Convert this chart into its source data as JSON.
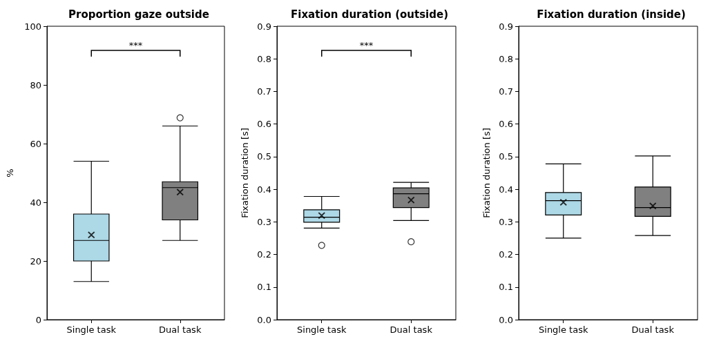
{
  "chart_data": [
    {
      "type": "box",
      "title": "Proportion gaze outside",
      "ylabel": "%",
      "categories": [
        "Single task",
        "Dual task"
      ],
      "colors": [
        "#add8e6",
        "#808080"
      ],
      "boxes": [
        {
          "low": 13,
          "q1": 20,
          "median": 27,
          "q3": 36,
          "high": 54,
          "mean": 28.9
        },
        {
          "low": 27,
          "q1": 34,
          "median": 45,
          "q3": 47,
          "high": 66,
          "mean": 43.5,
          "outliers": [
            68.8
          ]
        }
      ],
      "ylim": [
        0,
        100
      ],
      "yticks": [
        0,
        20,
        40,
        60,
        80,
        100
      ],
      "grid": false,
      "annotations": [
        "***"
      ]
    },
    {
      "type": "box",
      "title": "Fixation duration (outside)",
      "ylabel": "Fixation duration [s]",
      "categories": [
        "Single task",
        "Dual task"
      ],
      "colors": [
        "#add8e6",
        "#808080"
      ],
      "boxes": [
        {
          "low": 0.281,
          "q1": 0.299,
          "median": 0.314,
          "q3": 0.337,
          "high": 0.378,
          "mean": 0.319,
          "outliers": [
            0.228
          ]
        },
        {
          "low": 0.304,
          "q1": 0.344,
          "median": 0.386,
          "q3": 0.404,
          "high": 0.421,
          "mean": 0.367,
          "outliers": [
            0.239
          ]
        }
      ],
      "ylim": [
        0,
        0.9
      ],
      "yticks": [
        {
          "value": 0,
          "label": "0.0"
        },
        0.1,
        0.2,
        0.3,
        0.4,
        0.5,
        0.6,
        0.7,
        0.8,
        0.9
      ],
      "grid": false,
      "annotations": [
        "***"
      ]
    },
    {
      "type": "box",
      "title": "Fixation duration (inside)",
      "ylabel": "Fixation duration [s]",
      "categories": [
        "Single task",
        "Dual task"
      ],
      "colors": [
        "#add8e6",
        "#808080"
      ],
      "boxes": [
        {
          "low": 0.25,
          "q1": 0.321,
          "median": 0.365,
          "q3": 0.39,
          "high": 0.478,
          "mean": 0.36
        },
        {
          "low": 0.258,
          "q1": 0.317,
          "median": 0.344,
          "q3": 0.407,
          "high": 0.502,
          "mean": 0.349
        }
      ],
      "ylim": [
        0,
        0.9
      ],
      "yticks": [
        {
          "value": 0,
          "label": "0.0"
        },
        0.1,
        0.2,
        0.3,
        0.4,
        0.5,
        0.6,
        0.7,
        0.8,
        0.9
      ],
      "grid": false
    }
  ]
}
